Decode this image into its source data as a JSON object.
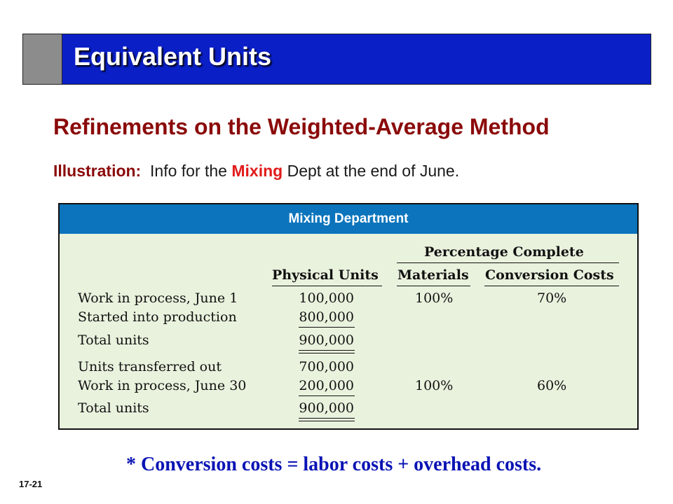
{
  "title": "Equivalent Units",
  "subtitle": "Refinements on the Weighted-Average Method",
  "illustration": {
    "label": "Illustration:",
    "text_before": "Info for the ",
    "highlight": "Mixing",
    "text_after": " Dept at the end of June."
  },
  "table": {
    "caption": "Mixing Department",
    "group_header": "Percentage Complete",
    "col_physical": "Physical Units",
    "col_materials": "Materials",
    "col_conversion": "Conversion Costs",
    "rows": [
      {
        "label": "Work in process, June 1",
        "units": "100,000",
        "materials": "100%",
        "conversion": "70%"
      },
      {
        "label": "Started into production",
        "units": "800,000",
        "materials": "",
        "conversion": ""
      },
      {
        "label": "Total units",
        "units": "900,000",
        "materials": "",
        "conversion": ""
      },
      {
        "label": "Units transferred out",
        "units": "700,000",
        "materials": "",
        "conversion": ""
      },
      {
        "label": "Work in process, June 30",
        "units": "200,000",
        "materials": "100%",
        "conversion": "60%"
      },
      {
        "label": "Total units",
        "units": "900,000",
        "materials": "",
        "conversion": ""
      }
    ]
  },
  "footnote": "* Conversion costs  =  labor costs  +  overhead costs.",
  "slide_number": "17-21"
}
